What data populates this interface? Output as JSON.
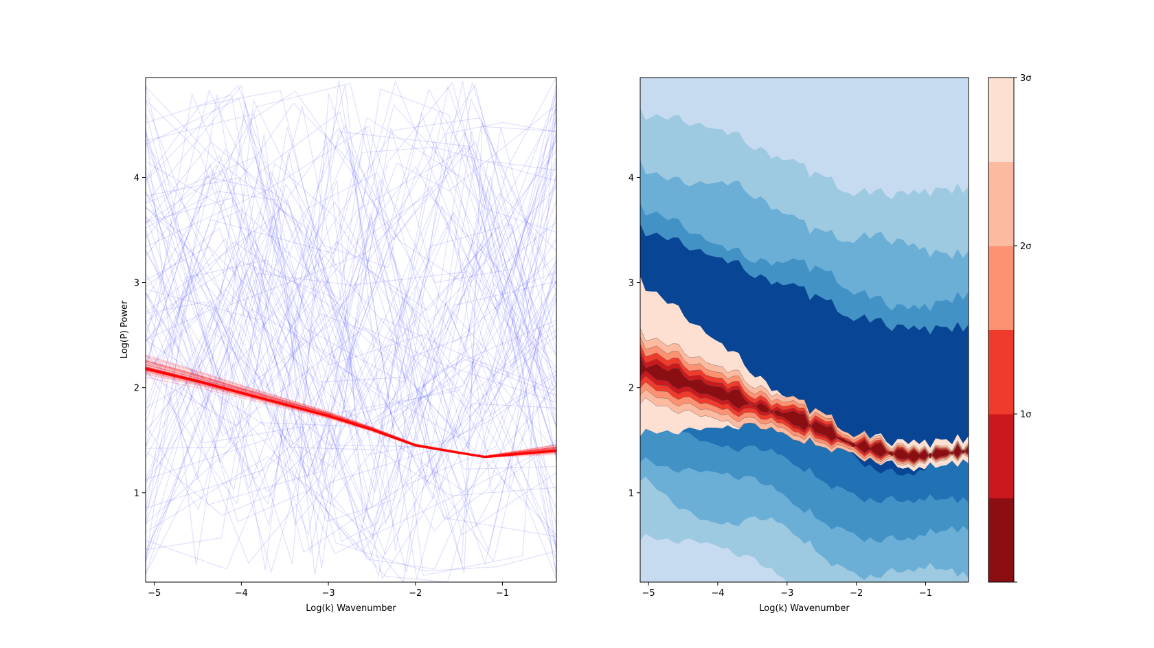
{
  "chart_data": [
    {
      "type": "line",
      "xlabel": "Log(k) Wavenumber",
      "ylabel": "Log(P) Power",
      "xlim": [
        -5.1,
        -0.38
      ],
      "ylim": [
        0.15,
        4.95
      ],
      "xticks": [
        -5,
        -4,
        -3,
        -2,
        -1
      ],
      "xtick_labels": [
        "−5",
        "−4",
        "−3",
        "−2",
        "−1"
      ],
      "yticks": [
        1,
        2,
        3,
        4
      ],
      "ytick_labels": [
        "1",
        "2",
        "3",
        "4"
      ],
      "grid": false,
      "series": [
        {
          "role": "random prior draws",
          "color": "#0000ff",
          "alpha": 0.12,
          "count": 100,
          "description_visible": "many thin translucent blue piecewise-linear curves spanning the full axes"
        },
        {
          "role": "posterior band",
          "color": "#ff0000",
          "x": [
            -5.1,
            -4.5,
            -4.0,
            -3.5,
            -3.0,
            -2.5,
            -2.0,
            -1.5,
            -1.2,
            -0.8,
            -0.38
          ],
          "y": [
            2.18,
            2.06,
            1.95,
            1.84,
            1.73,
            1.6,
            1.45,
            1.38,
            1.34,
            1.37,
            1.4
          ],
          "spread": [
            0.08,
            0.06,
            0.045,
            0.035,
            0.025,
            0.015,
            0.008,
            0.006,
            0.006,
            0.02,
            0.035
          ]
        }
      ]
    },
    {
      "type": "heatmap",
      "subtype": "filled-contour",
      "xlabel": "Log(k) Wavenumber",
      "ylabel": "",
      "xlim": [
        -5.12,
        -0.38
      ],
      "ylim": [
        0.15,
        4.95
      ],
      "xticks": [
        -5,
        -4,
        -3,
        -2,
        -1
      ],
      "xtick_labels": [
        "−5",
        "−4",
        "−3",
        "−2",
        "−1"
      ],
      "yticks": [
        1,
        2,
        3,
        4
      ],
      "ytick_labels": [
        "1",
        "2",
        "3",
        "4"
      ],
      "blue_levels": [
        "#c6dbef",
        "#9ecae1",
        "#6baed6",
        "#4292c6",
        "#2171b5",
        "#084594"
      ],
      "red_levels": [
        "#fee0d2",
        "#fcbba1",
        "#fc9272",
        "#ef3b2c",
        "#cb181d",
        "#8b0e12"
      ],
      "band_center": {
        "x": [
          -5.12,
          -4.5,
          -4.0,
          -3.5,
          -3.0,
          -2.5,
          -2.0,
          -1.5,
          -1.2,
          -0.8,
          -0.38
        ],
        "y": [
          2.2,
          2.06,
          1.95,
          1.84,
          1.73,
          1.6,
          1.45,
          1.38,
          1.34,
          1.37,
          1.4
        ]
      },
      "colorbar": {
        "ticks": [
          0,
          1,
          2,
          3
        ],
        "tick_labels": [
          "",
          "1σ",
          "2σ",
          "3σ"
        ],
        "levels": [
          "#8b0e12",
          "#cb181d",
          "#ef3b2c",
          "#fc9272",
          "#fcbba1",
          "#fee0d2"
        ]
      }
    }
  ]
}
